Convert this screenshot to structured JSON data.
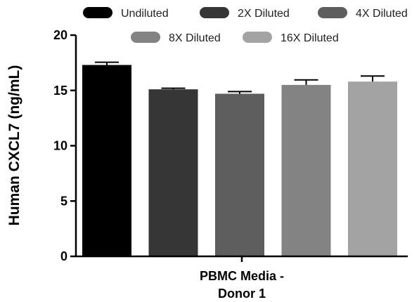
{
  "chart_data": {
    "type": "bar",
    "ylabel": "Human CXCL7 (ng/mL)",
    "category_label_lines": [
      "PBMC Media -",
      "Donor 1"
    ],
    "ylim": [
      0,
      20
    ],
    "yticks": [
      0,
      5,
      10,
      15,
      20
    ],
    "legend_position": "top",
    "series": [
      {
        "name": "Undiluted",
        "value": 17.3,
        "error": 0.25,
        "color": "#000000"
      },
      {
        "name": "2X Diluted",
        "value": 15.1,
        "error": 0.1,
        "color": "#363636"
      },
      {
        "name": "4X Diluted",
        "value": 14.7,
        "error": 0.2,
        "color": "#5e5e5e"
      },
      {
        "name": "8X Diluted",
        "value": 15.5,
        "error": 0.45,
        "color": "#838383"
      },
      {
        "name": "16X Diluted",
        "value": 15.8,
        "error": 0.5,
        "color": "#a3a3a3"
      }
    ]
  }
}
